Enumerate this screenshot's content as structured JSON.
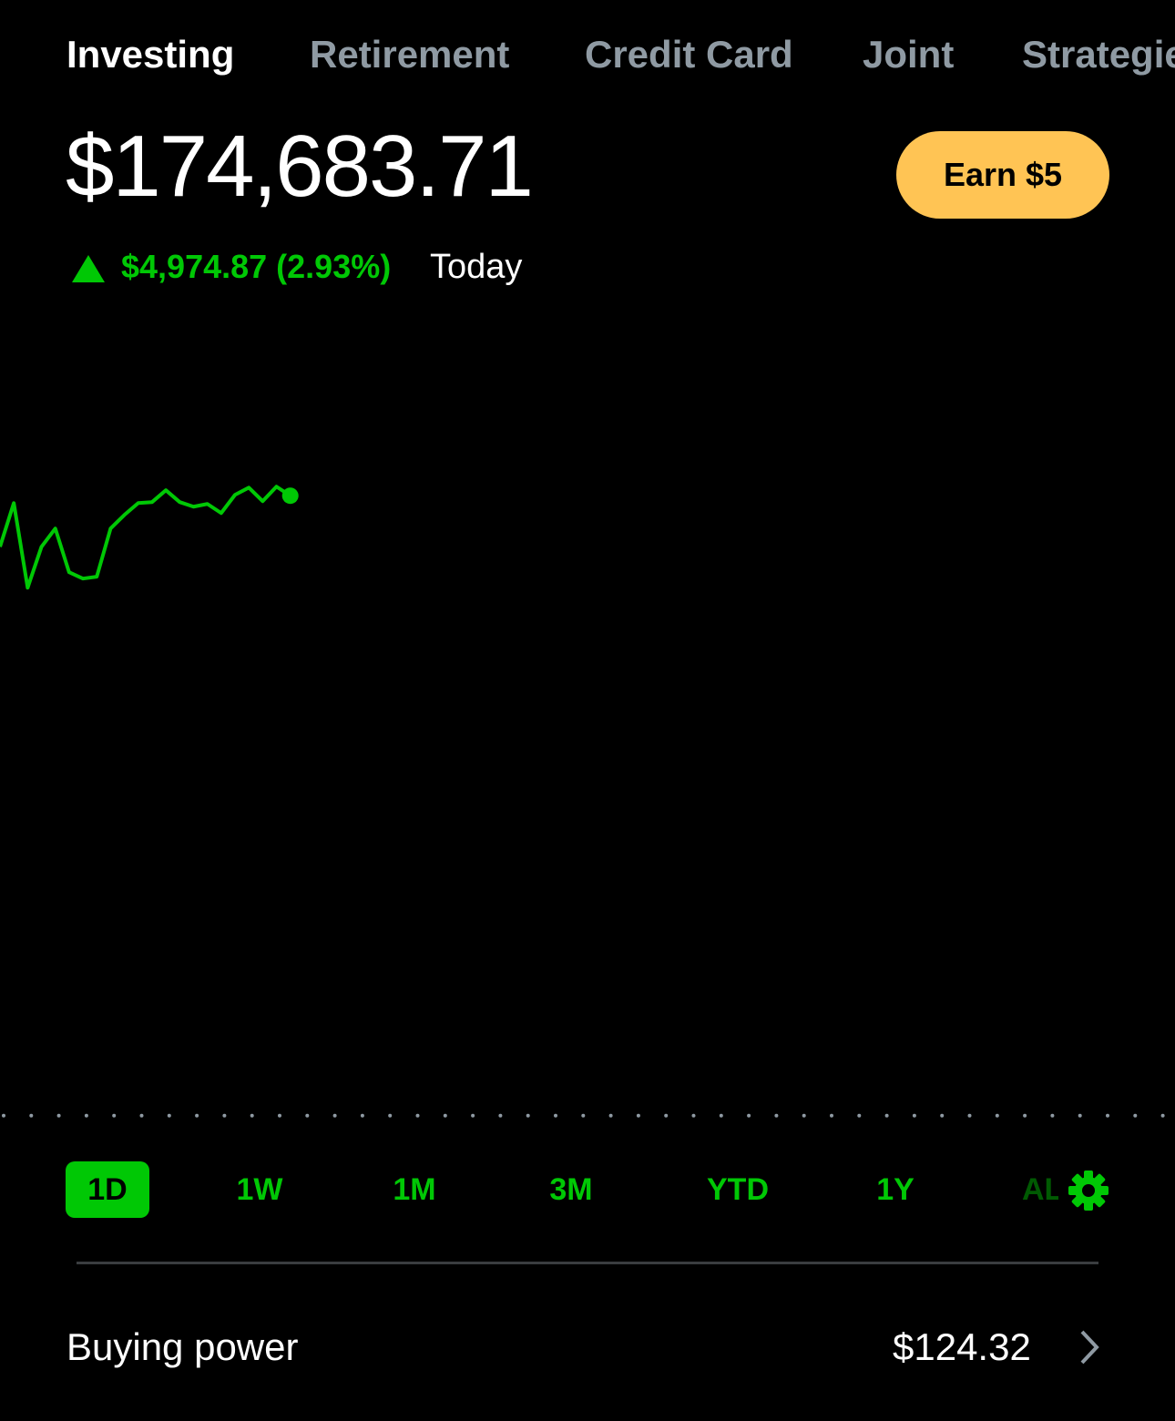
{
  "tabs": [
    "Investing",
    "Retirement",
    "Credit Card",
    "Joint",
    "Strategies"
  ],
  "balance": "$174,683.71",
  "earn_button": "Earn $5",
  "change": {
    "amount": "$4,974.87 (2.93%)",
    "period": "Today"
  },
  "chart_data": {
    "type": "line",
    "color": "#00c805",
    "x": [
      0,
      1,
      2,
      3,
      4,
      5,
      6,
      7,
      8,
      9,
      10,
      11,
      12,
      13,
      14,
      15,
      16,
      17,
      18,
      19,
      20,
      21
    ],
    "values": [
      174274,
      174625,
      173946,
      174274,
      174421,
      174070,
      174019,
      174034,
      174421,
      174530,
      174625,
      174633,
      174728,
      174633,
      174596,
      174618,
      174545,
      174691,
      174749,
      174640,
      174757,
      174684
    ],
    "xlim": [
      0,
      85
    ],
    "ylim": [
      169700,
      176250
    ],
    "reference": 169708.84
  },
  "ranges": [
    "1D",
    "1W",
    "1M",
    "3M",
    "YTD",
    "1Y",
    "ALL"
  ],
  "buying_power": {
    "label": "Buying power",
    "value": "$124.32"
  }
}
